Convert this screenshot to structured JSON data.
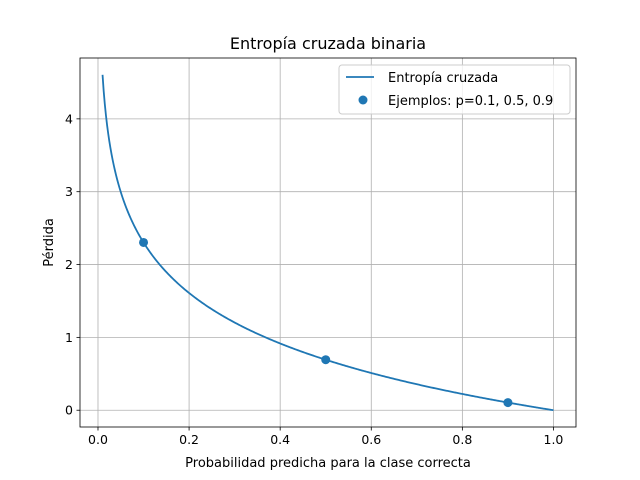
{
  "chart_data": {
    "type": "line",
    "title": "Entropía cruzada binaria",
    "xlabel": "Probabilidad predicha para la clase correcta",
    "ylabel": "Pérdida",
    "xlim": [
      -0.0395,
      1.0495
    ],
    "ylim": [
      -0.2303,
      4.8354
    ],
    "xticks": [
      0.0,
      0.2,
      0.4,
      0.6,
      0.8,
      1.0
    ],
    "xtick_labels": [
      "0.0",
      "0.2",
      "0.4",
      "0.6",
      "0.8",
      "1.0"
    ],
    "yticks": [
      0,
      1,
      2,
      3,
      4
    ],
    "ytick_labels": [
      "0",
      "1",
      "2",
      "3",
      "4"
    ],
    "grid": true,
    "legend_position": "top-right",
    "series": [
      {
        "name": "Entropía cruzada",
        "kind": "line",
        "function": "-ln(p)",
        "x_range": [
          0.01,
          1.0
        ],
        "color": "#1f77b4"
      },
      {
        "name": "Ejemplos: p=0.1, 0.5, 0.9",
        "kind": "scatter",
        "x": [
          0.1,
          0.5,
          0.9
        ],
        "y": [
          2.303,
          0.693,
          0.105
        ],
        "color": "#1f77b4"
      }
    ]
  }
}
